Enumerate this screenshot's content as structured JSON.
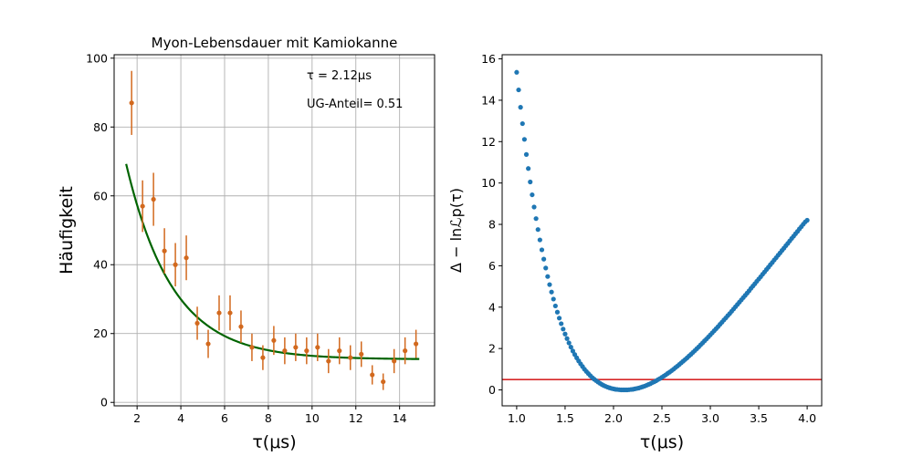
{
  "chart_data": [
    {
      "type": "scatter",
      "title": "Myon-Lebensdauer mit Kamiokanne",
      "xlabel": "τ(μs)",
      "ylabel": "Häufigkeit",
      "xlim": [
        0.95,
        15.6
      ],
      "ylim": [
        -1,
        101
      ],
      "xticks": [
        "2",
        "4",
        "6",
        "8",
        "10",
        "12",
        "14"
      ],
      "yticks": [
        "0",
        "20",
        "40",
        "60",
        "80",
        "100"
      ],
      "grid": true,
      "annotations": [
        "τ = 2.12μs",
        "UG-Anteil= 0.51"
      ],
      "series": [
        {
          "kind": "errorbar",
          "color": "#d2691e",
          "x": [
            1.75,
            2.25,
            2.75,
            3.25,
            3.75,
            4.25,
            4.75,
            5.25,
            5.75,
            6.25,
            6.75,
            7.25,
            7.75,
            8.25,
            8.75,
            9.25,
            9.75,
            10.25,
            10.75,
            11.25,
            11.75,
            12.25,
            12.75,
            13.25,
            13.75,
            14.25,
            14.75
          ],
          "y": [
            87,
            57,
            59,
            44,
            40,
            42,
            23,
            17,
            26,
            26,
            22,
            16,
            13,
            18,
            15,
            16,
            15,
            16,
            12,
            15,
            13,
            14,
            8,
            6,
            12,
            15,
            17
          ],
          "yerr": [
            9.3,
            7.5,
            7.7,
            6.6,
            6.3,
            6.5,
            4.8,
            4.1,
            5.1,
            5.1,
            4.7,
            4.0,
            3.6,
            4.2,
            3.9,
            4.0,
            3.9,
            4.0,
            3.5,
            3.9,
            3.6,
            3.7,
            2.8,
            2.4,
            3.5,
            3.9,
            4.1
          ]
        },
        {
          "kind": "fit-line",
          "color": "#006400",
          "model": "A*exp(-x/tau)+B",
          "A": 115.2,
          "tau": 2.12,
          "B": 12.5,
          "xrange": [
            1.5,
            14.9
          ]
        }
      ]
    },
    {
      "type": "scatter",
      "title": "",
      "xlabel": "τ(μs)",
      "ylabel": "Δ − lnℒp(τ)",
      "xlim": [
        0.85,
        4.15
      ],
      "ylim": [
        -0.77,
        16.2
      ],
      "xticks": [
        "1.0",
        "1.5",
        "2.0",
        "2.5",
        "3.0",
        "3.5",
        "4.0"
      ],
      "yticks": [
        "0",
        "2",
        "4",
        "6",
        "8",
        "10",
        "12",
        "14",
        "16"
      ],
      "grid": false,
      "series": [
        {
          "kind": "points",
          "color": "#1f77b4",
          "x": [
            1.0,
            1.02,
            1.04,
            1.06,
            1.08,
            1.1,
            1.12,
            1.14,
            1.16,
            1.18,
            1.2,
            1.22,
            1.24,
            1.26,
            1.28,
            1.3,
            1.32,
            1.34,
            1.36,
            1.38,
            1.4,
            1.42,
            1.44,
            1.46,
            1.48,
            1.5,
            1.52,
            1.54,
            1.56,
            1.58,
            1.6,
            1.62,
            1.64,
            1.66,
            1.68,
            1.7,
            1.72,
            1.74,
            1.76,
            1.78,
            1.8,
            1.82,
            1.84,
            1.86,
            1.88,
            1.9,
            1.92,
            1.94,
            1.96,
            1.98,
            2.0,
            2.02,
            2.04,
            2.06,
            2.08,
            2.1,
            2.12,
            2.14,
            2.16,
            2.18,
            2.2,
            2.22,
            2.24,
            2.26,
            2.28,
            2.3,
            2.32,
            2.34,
            2.36,
            2.38,
            2.4,
            2.42,
            2.44,
            2.46,
            2.48,
            2.5,
            2.52,
            2.54,
            2.56,
            2.58,
            2.6,
            2.62,
            2.64,
            2.66,
            2.68,
            2.7,
            2.72,
            2.74,
            2.76,
            2.78,
            2.8,
            2.82,
            2.84,
            2.86,
            2.88,
            2.9,
            2.92,
            2.94,
            2.96,
            2.98,
            3.0,
            3.02,
            3.04,
            3.06,
            3.08,
            3.1,
            3.12,
            3.14,
            3.16,
            3.18,
            3.2,
            3.22,
            3.24,
            3.26,
            3.28,
            3.3,
            3.32,
            3.34,
            3.36,
            3.38,
            3.4,
            3.42,
            3.44,
            3.46,
            3.48,
            3.5,
            3.52,
            3.54,
            3.56,
            3.58,
            3.6,
            3.62,
            3.64,
            3.66,
            3.68,
            3.7,
            3.72,
            3.74,
            3.76,
            3.78,
            3.8,
            3.82,
            3.84,
            3.86,
            3.88,
            3.9,
            3.92,
            3.94,
            3.96,
            3.98,
            4.0
          ],
          "y": [
            15.35,
            14.5,
            13.66,
            12.87,
            12.11,
            11.38,
            10.7,
            10.05,
            9.43,
            8.84,
            8.28,
            7.75,
            7.25,
            6.77,
            6.32,
            5.89,
            5.48,
            5.09,
            4.73,
            4.39,
            4.06,
            3.76,
            3.47,
            3.2,
            2.94,
            2.7,
            2.48,
            2.27,
            2.07,
            1.88,
            1.71,
            1.55,
            1.4,
            1.26,
            1.13,
            1.0,
            0.89,
            0.79,
            0.69,
            0.6,
            0.52,
            0.45,
            0.38,
            0.32,
            0.26,
            0.21,
            0.17,
            0.13,
            0.1,
            0.07,
            0.05,
            0.03,
            0.02,
            0.01,
            0.0,
            0.0,
            0.0,
            0.0,
            0.01,
            0.02,
            0.03,
            0.05,
            0.07,
            0.09,
            0.12,
            0.15,
            0.18,
            0.22,
            0.26,
            0.3,
            0.35,
            0.39,
            0.44,
            0.5,
            0.55,
            0.61,
            0.67,
            0.73,
            0.8,
            0.86,
            0.93,
            1.0,
            1.08,
            1.15,
            1.23,
            1.31,
            1.39,
            1.47,
            1.55,
            1.64,
            1.72,
            1.81,
            1.9,
            1.99,
            2.08,
            2.18,
            2.27,
            2.37,
            2.46,
            2.56,
            2.66,
            2.76,
            2.86,
            2.96,
            3.06,
            3.17,
            3.27,
            3.38,
            3.48,
            3.59,
            3.69,
            3.8,
            3.91,
            4.02,
            4.13,
            4.24,
            4.35,
            4.46,
            4.57,
            4.68,
            4.79,
            4.91,
            5.02,
            5.13,
            5.25,
            5.36,
            5.47,
            5.59,
            5.7,
            5.82,
            5.93,
            6.05,
            6.16,
            6.28,
            6.39,
            6.51,
            6.62,
            6.74,
            6.85,
            6.97,
            7.08,
            7.2,
            7.32,
            7.43,
            7.55,
            7.66,
            7.78,
            7.89,
            8.01,
            8.12,
            8.2
          ]
        },
        {
          "kind": "hline",
          "color": "#d62728",
          "y": 0.5
        }
      ]
    }
  ]
}
